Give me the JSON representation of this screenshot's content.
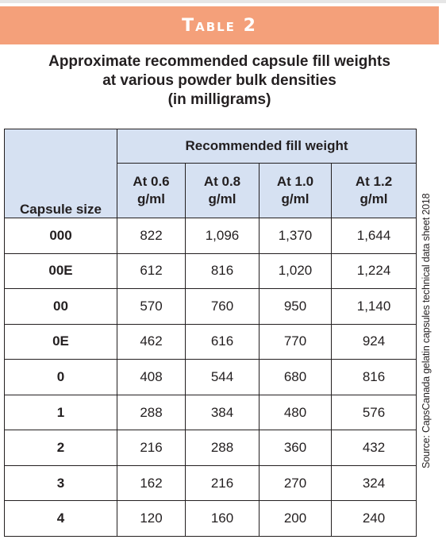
{
  "banner": {
    "title": "Table 2"
  },
  "subtitle": {
    "line1": "Approximate recommended capsule fill weights",
    "line2": "at various powder bulk densities",
    "line3": "(in milligrams)"
  },
  "table": {
    "corner_header": "Capsule size",
    "group_header": "Recommended fill weight",
    "columns": [
      {
        "line1": "At 0.6",
        "line2": "g/ml"
      },
      {
        "line1": "At 0.8",
        "line2": "g/ml"
      },
      {
        "line1": "At 1.0",
        "line2": "g/ml"
      },
      {
        "line1": "At 1.2",
        "line2": "g/ml"
      }
    ],
    "rows": [
      {
        "size": "000",
        "values": [
          "822",
          "1,096",
          "1,370",
          "1,644"
        ]
      },
      {
        "size": "00E",
        "values": [
          "612",
          "816",
          "1,020",
          "1,224"
        ]
      },
      {
        "size": "00",
        "values": [
          "570",
          "760",
          "950",
          "1,140"
        ]
      },
      {
        "size": "0E",
        "values": [
          "462",
          "616",
          "770",
          "924"
        ]
      },
      {
        "size": "0",
        "values": [
          "408",
          "544",
          "680",
          "816"
        ]
      },
      {
        "size": "1",
        "values": [
          "288",
          "384",
          "480",
          "576"
        ]
      },
      {
        "size": "2",
        "values": [
          "216",
          "288",
          "360",
          "432"
        ]
      },
      {
        "size": "3",
        "values": [
          "162",
          "216",
          "270",
          "324"
        ]
      },
      {
        "size": "4",
        "values": [
          "120",
          "160",
          "200",
          "240"
        ]
      }
    ]
  },
  "source": "Source: CapsCanada gelatin capsules technical data sheet 2018",
  "colors": {
    "banner": "#f4a07a",
    "header_fill": "#d6e1f2",
    "text": "#231f20"
  }
}
